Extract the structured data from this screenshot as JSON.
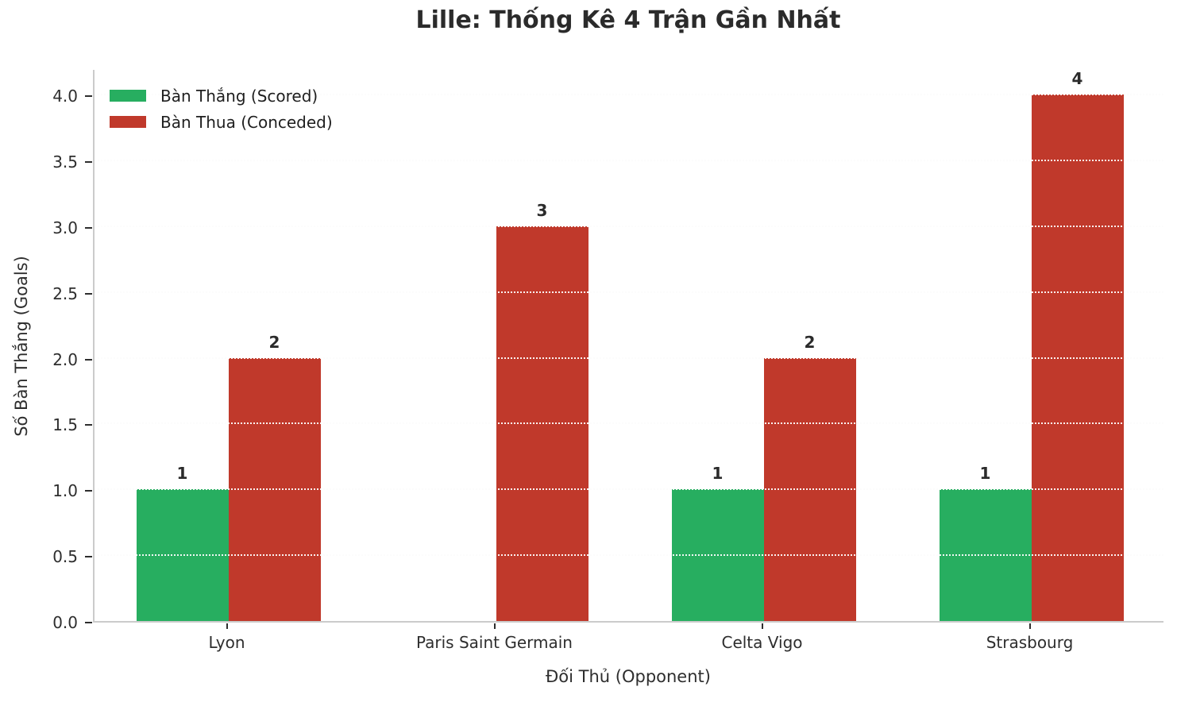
{
  "chart_data": {
    "type": "bar",
    "title": "Lille: Thống Kê 4 Trận Gần Nhất",
    "xlabel": "Đối Thủ (Opponent)",
    "ylabel": "Số Bàn Thắng (Goals)",
    "categories": [
      "Lyon",
      "Paris Saint Germain",
      "Celta Vigo",
      "Strasbourg"
    ],
    "series": [
      {
        "name": "Bàn Thắng (Scored)",
        "color": "#27ae60",
        "values": [
          1,
          0,
          1,
          1
        ]
      },
      {
        "name": "Bàn Thua (Conceded)",
        "color": "#c0392b",
        "values": [
          2,
          3,
          2,
          4
        ]
      }
    ],
    "bar_value_labels": {
      "show": true,
      "hide_zero": true
    },
    "ylim": [
      0,
      4.2
    ],
    "ytick_labels": [
      "0.0",
      "0.5",
      "1.0",
      "1.5",
      "2.0",
      "2.5",
      "3.0",
      "3.5",
      "4.0"
    ],
    "grid": {
      "axis": "y",
      "style": "dotted",
      "color_on_background": "#cccccc",
      "color_over_bars": "#ffffff"
    },
    "legend": {
      "position": "upper-left",
      "frame": false
    },
    "styles": {
      "background": "#ffffff",
      "title_color": "#2b2b2b",
      "tick_text_color": "#2e2e2e",
      "spine_color": "#cbcbcb",
      "tick_mark_color": "#2e2e2e"
    }
  }
}
